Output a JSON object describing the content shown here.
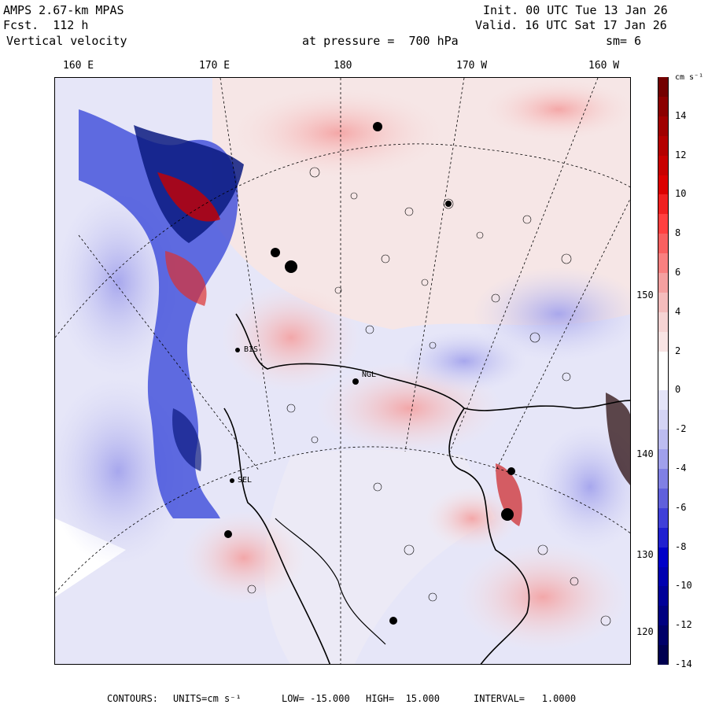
{
  "header": {
    "model": "AMPS 2.67-km MPAS",
    "forecast": "Fcst.  112 h",
    "field": "Vertical velocity",
    "init": "Init. 00 UTC Tue 13 Jan 26",
    "valid": "Valid. 16 UTC Sat 17 Jan 26",
    "level": "at pressure =  700 hPa",
    "smoothing": "sm= 6"
  },
  "map": {
    "lon_labels": [
      "160 E",
      "170 E",
      "180",
      "170 W",
      "160 W"
    ],
    "lat_labels": [
      "150 W",
      "140 W",
      "130 W",
      "120 W"
    ],
    "site_labels": [
      "NGL",
      "SEL",
      "BIS"
    ],
    "colors": {
      "ocean_bg": "#e8e8f8",
      "land_bg": "#f6f0f0",
      "strong_blue": "#0b2bd8",
      "strong_red": "#c80000"
    }
  },
  "colorbar": {
    "units_label": "cm s⁻¹",
    "tick_labels": [
      "14",
      "12",
      "10",
      "8",
      "6",
      "4",
      "2",
      "0",
      "-2",
      "-4",
      "-6",
      "-8",
      "-10",
      "-12",
      "-14"
    ],
    "colors": [
      "#730000",
      "#8b0000",
      "#a00000",
      "#b40000",
      "#c80000",
      "#dc0000",
      "#f02020",
      "#ff4040",
      "#f86060",
      "#f88080",
      "#f4a0a0",
      "#f4bcbc",
      "#f6d4d4",
      "#f8e4e4",
      "#ffffff",
      "#ffffff",
      "#e4e4f8",
      "#d4d4f4",
      "#bcbcf0",
      "#a0a0ec",
      "#8080e4",
      "#6060dc",
      "#4040d8",
      "#2020d0",
      "#0000c8",
      "#0000b0",
      "#000098",
      "#000080",
      "#000068",
      "#000050"
    ]
  },
  "footer": {
    "contours_label": "CONTOURS:",
    "units": "UNITS=cm s⁻¹",
    "low": "LOW= -15.000",
    "high": "HIGH=  15.000",
    "interval": "INTERVAL=   1.0000"
  }
}
